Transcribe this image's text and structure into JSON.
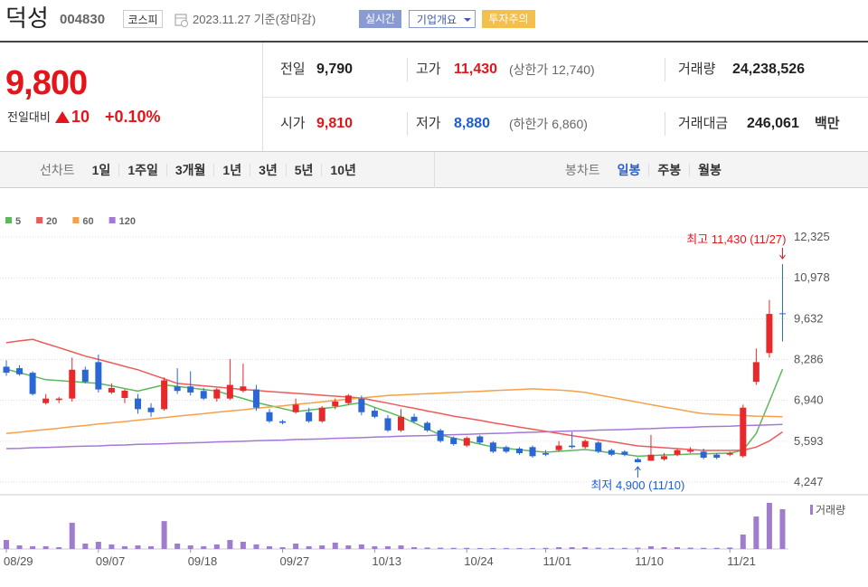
{
  "header": {
    "name": "덕성",
    "code": "004830",
    "market": "코스피",
    "date": "2023.11.27 기준(장마감)",
    "buttons": [
      "실시간",
      "기업개요",
      "투자주의"
    ]
  },
  "summary": {
    "price": "9,800",
    "change_label": "전일대비",
    "change": "10",
    "change_pct": "+0.10%",
    "items": [
      {
        "label": "전일",
        "value": "9,790",
        "color": "#222"
      },
      {
        "label": "고가",
        "value": "11,430",
        "color": "#e4151a",
        "extra": "(상한가 12,740)"
      },
      {
        "label": "거래량",
        "value": "24,238,526",
        "color": "#222"
      },
      {
        "label": "시가",
        "value": "9,810",
        "color": "#e4151a"
      },
      {
        "label": "저가",
        "value": "8,880",
        "color": "#1c5fd0",
        "extra": "(하한가 6,860)"
      },
      {
        "label": "거래대금",
        "value": "246,061",
        "color": "#222",
        "unit": "백만"
      }
    ]
  },
  "tabs": {
    "line": {
      "label": "선차트",
      "items": [
        "1일",
        "1주일",
        "3개월",
        "1년",
        "3년",
        "5년",
        "10년"
      ]
    },
    "candle": {
      "label": "봉차트",
      "items": [
        "일봉",
        "주봉",
        "월봉"
      ],
      "active": 0
    }
  },
  "chart_data": {
    "type": "candlestick",
    "categories": [
      "08/29",
      null,
      null,
      null,
      null,
      null,
      null,
      "09/07",
      null,
      null,
      null,
      null,
      null,
      null,
      "09/18",
      null,
      null,
      null,
      null,
      null,
      null,
      "09/27",
      null,
      null,
      null,
      null,
      null,
      null,
      "10/13",
      null,
      null,
      null,
      null,
      null,
      null,
      "10/24",
      null,
      null,
      null,
      null,
      null,
      "11/01",
      null,
      null,
      null,
      null,
      null,
      null,
      "11/10",
      null,
      null,
      null,
      null,
      null,
      null,
      "11/21",
      null,
      null,
      null,
      null
    ],
    "open": [
      8050,
      8000,
      7850,
      6850,
      6950,
      7000,
      7950,
      8200,
      7200,
      7020,
      7000,
      6700,
      6650,
      7400,
      7400,
      7250,
      7000,
      7000,
      7250,
      7300,
      6550,
      6250,
      6550,
      6550,
      6250,
      6750,
      6850,
      7000,
      6600,
      6350,
      5950,
      6400,
      6200,
      5950,
      5700,
      5450,
      5750,
      5550,
      5400,
      5350,
      5400,
      5200,
      5300,
      5450,
      5400,
      5550,
      5300,
      5250,
      5000,
      4950,
      5000,
      5150,
      5250,
      5250,
      5150,
      5150,
      5100,
      7550,
      8500,
      9810
    ],
    "high": [
      8260,
      8100,
      7900,
      7150,
      7050,
      8350,
      8050,
      8450,
      7500,
      7300,
      7150,
      6850,
      7700,
      8000,
      7900,
      7350,
      7350,
      8300,
      8150,
      7450,
      6650,
      6300,
      7000,
      6700,
      6750,
      7000,
      7150,
      7100,
      6700,
      6450,
      6650,
      6500,
      6250,
      6000,
      5750,
      5750,
      5800,
      5600,
      5450,
      5400,
      5450,
      5300,
      5600,
      5900,
      5650,
      5600,
      5350,
      5300,
      5050,
      5800,
      5200,
      5350,
      5400,
      5350,
      5200,
      5250,
      6800,
      8650,
      10250,
      11430
    ],
    "low": [
      7750,
      7750,
      7100,
      6800,
      6850,
      6900,
      7500,
      7200,
      7150,
      6850,
      6500,
      6400,
      6600,
      7150,
      7100,
      6950,
      6900,
      6950,
      7200,
      6600,
      6200,
      6150,
      6500,
      6200,
      6200,
      6650,
      6800,
      6450,
      6350,
      5900,
      5900,
      6200,
      5900,
      5550,
      5450,
      5400,
      5500,
      5200,
      5200,
      5150,
      5050,
      5100,
      5250,
      5350,
      5350,
      5200,
      5100,
      5100,
      4900,
      4950,
      4950,
      5100,
      5200,
      5000,
      5000,
      5100,
      5050,
      7450,
      8350,
      8880
    ],
    "close": [
      7850,
      7800,
      7150,
      7000,
      7000,
      7950,
      7550,
      7300,
      7350,
      7260,
      6650,
      6550,
      7600,
      7250,
      7200,
      7000,
      7300,
      7450,
      7400,
      6700,
      6250,
      6200,
      6800,
      6250,
      6700,
      6900,
      7100,
      6550,
      6400,
      5950,
      6400,
      6250,
      5950,
      5600,
      5500,
      5700,
      5550,
      5250,
      5250,
      5200,
      5100,
      5150,
      5450,
      5400,
      5600,
      5250,
      5150,
      5150,
      4900,
      5150,
      5100,
      5300,
      5300,
      5050,
      5050,
      5200,
      6700,
      8200,
      9790,
      9800
    ],
    "volume": [
      5500000,
      2200000,
      1700000,
      1700000,
      1100000,
      16000000,
      3300000,
      4400000,
      2800000,
      1700000,
      2200000,
      1700000,
      17000000,
      3300000,
      2200000,
      1700000,
      2800000,
      5500000,
      4400000,
      2800000,
      1700000,
      1100000,
      3300000,
      1700000,
      2200000,
      3900000,
      2200000,
      2800000,
      1700000,
      1700000,
      2200000,
      1100000,
      900000,
      800000,
      700000,
      700000,
      600000,
      600000,
      600000,
      600000,
      600000,
      700000,
      1100000,
      1100000,
      1100000,
      800000,
      700000,
      700000,
      800000,
      1700000,
      1100000,
      1100000,
      800000,
      700000,
      700000,
      900000,
      8800000,
      19800000,
      28100000,
      24238526
    ],
    "volume_label": "거래량",
    "up_color": "#e8282b",
    "down_color": "#2a66d4",
    "volume_color": "#a07ccc",
    "series": [
      {
        "name": "5",
        "color": "#5cb85c",
        "values": [
          7970,
          7850,
          7740,
          7620,
          7590,
          7560,
          7530,
          7500,
          7420,
          7330,
          7250,
          7350,
          7450,
          7400,
          7350,
          7300,
          7250,
          7120,
          7000,
          6870,
          6770,
          6670,
          6570,
          6620,
          6670,
          6720,
          6800,
          6870,
          6710,
          6560,
          6400,
          6200,
          6000,
          5800,
          5700,
          5600,
          5500,
          5400,
          5360,
          5310,
          5270,
          5230,
          5260,
          5290,
          5320,
          5270,
          5210,
          5160,
          5100,
          5120,
          5140,
          5150,
          5170,
          5180,
          5190,
          5200,
          5300,
          5850,
          6900,
          7970
        ]
      },
      {
        "name": "20",
        "color": "#ee5a5a",
        "values": [
          8840,
          8900,
          8950,
          8810,
          8680,
          8540,
          8400,
          8290,
          8180,
          8060,
          7950,
          7800,
          7650,
          7500,
          7460,
          7420,
          7380,
          7340,
          7300,
          7270,
          7230,
          7200,
          7170,
          7140,
          7110,
          7080,
          7050,
          7020,
          6930,
          6850,
          6760,
          6680,
          6590,
          6510,
          6420,
          6350,
          6280,
          6200,
          6130,
          6060,
          5990,
          5920,
          5850,
          5780,
          5710,
          5640,
          5580,
          5510,
          5440,
          5410,
          5380,
          5350,
          5320,
          5290,
          5290,
          5290,
          5300,
          5400,
          5600,
          5900
        ]
      },
      {
        "name": "60",
        "color": "#f5a04a",
        "values": [
          5850,
          5890,
          5940,
          5980,
          6020,
          6070,
          6110,
          6160,
          6200,
          6240,
          6290,
          6330,
          6370,
          6420,
          6460,
          6500,
          6550,
          6590,
          6630,
          6680,
          6720,
          6760,
          6810,
          6850,
          6890,
          6940,
          6980,
          7020,
          7060,
          7100,
          7120,
          7140,
          7160,
          7180,
          7200,
          7220,
          7240,
          7260,
          7280,
          7300,
          7320,
          7300,
          7280,
          7250,
          7200,
          7120,
          7040,
          6960,
          6880,
          6800,
          6720,
          6650,
          6570,
          6500,
          6480,
          6460,
          6440,
          6420,
          6410,
          6400
        ]
      },
      {
        "name": "120",
        "color": "#a578d8",
        "values": [
          5350,
          5360,
          5380,
          5390,
          5400,
          5420,
          5430,
          5440,
          5460,
          5470,
          5490,
          5500,
          5510,
          5530,
          5540,
          5550,
          5570,
          5580,
          5590,
          5610,
          5620,
          5630,
          5650,
          5660,
          5670,
          5690,
          5700,
          5710,
          5730,
          5740,
          5760,
          5770,
          5780,
          5800,
          5810,
          5820,
          5840,
          5850,
          5860,
          5880,
          5890,
          5900,
          5920,
          5930,
          5940,
          5960,
          5970,
          5980,
          6000,
          6010,
          6030,
          6040,
          6050,
          6070,
          6080,
          6090,
          6110,
          6120,
          6130,
          6150
        ]
      }
    ],
    "ylim": [
      4247,
      12325
    ],
    "yticks": [
      {
        "value": 12325,
        "label": "12,325"
      },
      {
        "value": 10978,
        "label": "10,978"
      },
      {
        "value": 9632,
        "label": "9,632"
      },
      {
        "value": 8286,
        "label": "8,286"
      },
      {
        "value": 6940,
        "label": "6,940"
      },
      {
        "value": 5593,
        "label": "5,593"
      },
      {
        "value": 4247,
        "label": "4,247"
      }
    ],
    "grid": true,
    "annotations": [
      {
        "text": "최고 11,430 (11/27)",
        "color": "#e4151a"
      },
      {
        "text": "최저 4,900 (11/10)",
        "color": "#1c5fd0"
      }
    ]
  }
}
